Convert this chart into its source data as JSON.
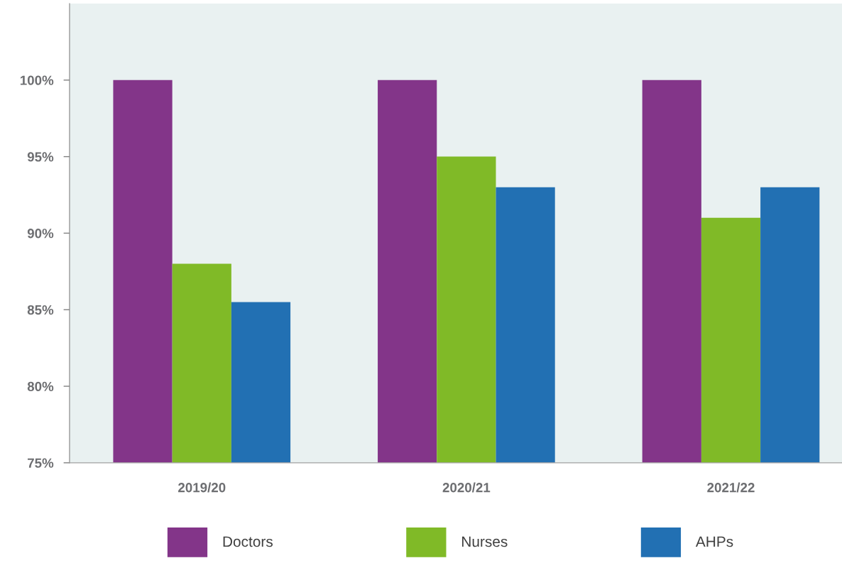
{
  "chart_data": {
    "type": "bar",
    "categories": [
      "2019/20",
      "2020/21",
      "2021/22"
    ],
    "series": [
      {
        "name": "Doctors",
        "color": "#833589",
        "values": [
          100,
          100,
          100
        ]
      },
      {
        "name": "Nurses",
        "color": "#80ba27",
        "values": [
          88,
          95,
          91
        ]
      },
      {
        "name": "AHPs",
        "color": "#2270b3",
        "values": [
          85.5,
          93,
          93
        ]
      }
    ],
    "ylim": [
      75,
      105
    ],
    "yticks": [
      {
        "value": 75,
        "label": "75%"
      },
      {
        "value": 80,
        "label": "80%"
      },
      {
        "value": 85,
        "label": "85%"
      },
      {
        "value": 90,
        "label": "90%"
      },
      {
        "value": 95,
        "label": "95%"
      },
      {
        "value": 100,
        "label": "100%"
      }
    ],
    "grid": false,
    "legend": "bottom"
  }
}
